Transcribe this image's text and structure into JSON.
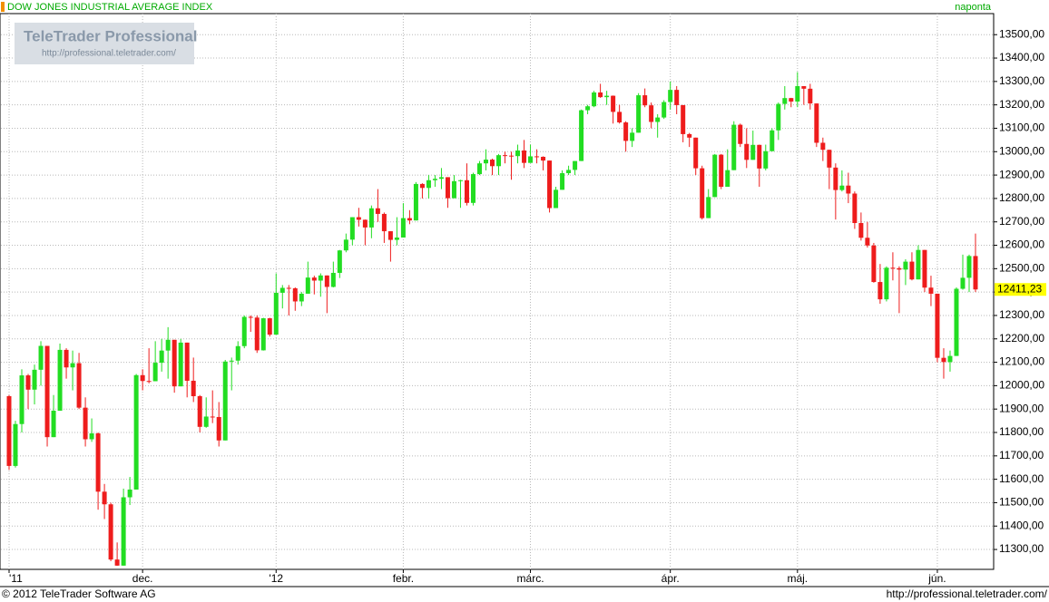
{
  "chart_data": {
    "type": "candlestick",
    "title": "DOW JONES INDUSTRIAL AVERAGE INDEX",
    "subtitle": "naponta",
    "categories": [
      "'11",
      null,
      null,
      null,
      null,
      null,
      null,
      null,
      null,
      null,
      null,
      null,
      null,
      null,
      null,
      null,
      null,
      null,
      null,
      null,
      null,
      "dec.",
      null,
      null,
      null,
      null,
      null,
      null,
      null,
      null,
      null,
      null,
      null,
      null,
      null,
      null,
      null,
      null,
      null,
      null,
      null,
      null,
      "'12",
      null,
      null,
      null,
      null,
      null,
      null,
      null,
      null,
      null,
      null,
      null,
      null,
      null,
      null,
      null,
      null,
      null,
      null,
      null,
      "febr.",
      null,
      null,
      null,
      null,
      null,
      null,
      null,
      null,
      null,
      null,
      null,
      null,
      null,
      null,
      null,
      null,
      null,
      null,
      null,
      "márc.",
      null,
      null,
      null,
      null,
      null,
      null,
      null,
      null,
      null,
      null,
      null,
      null,
      null,
      null,
      null,
      null,
      null,
      null,
      null,
      null,
      null,
      "ápr.",
      null,
      null,
      null,
      null,
      null,
      null,
      null,
      null,
      null,
      null,
      null,
      null,
      null,
      null,
      null,
      null,
      null,
      null,
      null,
      "máj.",
      null,
      null,
      null,
      null,
      null,
      null,
      null,
      null,
      null,
      null,
      null,
      null,
      null,
      null,
      null,
      null,
      null,
      null,
      null,
      null,
      null,
      "jún.",
      null,
      null,
      null,
      null,
      null,
      null
    ],
    "open": [
      11955,
      11657,
      11836,
      12044,
      11983,
      12068,
      12170,
      11780,
      11893,
      12153,
      12078,
      12096,
      11906,
      11771,
      11796,
      11547,
      11493,
      11257,
      11231,
      11523,
      11556,
      12045,
      12020,
      12019,
      12098,
      12150,
      12196,
      11997,
      12184,
      12021,
      11955,
      11824,
      11868,
      11866,
      11766,
      12103,
      12107,
      12169,
      12294,
      12291,
      12151,
      12288,
      12218,
      12397,
      12418,
      12416,
      12360,
      12393,
      12462,
      12449,
      12471,
      12422,
      12482,
      12578,
      12624,
      12720,
      12709,
      12676,
      12758,
      12734,
      12660,
      12623,
      12633,
      12716,
      12706,
      12862,
      12845,
      12878,
      12884,
      12891,
      12801,
      12874,
      12878,
      12781,
      12904,
      12950,
      12966,
      12938,
      12985,
      12983,
      12981,
      13005,
      12952,
      12980,
      12978,
      12962,
      12759,
      12837,
      12908,
      12922,
      12960,
      13177,
      13194,
      13253,
      13233,
      13239,
      13170,
      13125,
      13046,
      13081,
      13241,
      13198,
      13127,
      13146,
      13212,
      13264,
      13199,
      13075,
      13060,
      12929,
      12716,
      12806,
      12987,
      12850,
      12921,
      13115,
      13033,
      12965,
      13029,
      12928,
      13002,
      13091,
      13204,
      13229,
      13214,
      13280,
      13269,
      13206,
      13038,
      13008,
      12932,
      12836,
      12855,
      12821,
      12695,
      12632,
      12599,
      12443,
      12369,
      12504,
      12502,
      12496,
      12530,
      12454,
      12580,
      12419,
      12393,
      12119,
      12101,
      12127,
      12414,
      12461,
      12554
    ],
    "high": [
      11960,
      11850,
      12070,
      12050,
      12090,
      12190,
      12170,
      11960,
      12180,
      12160,
      12150,
      12140,
      11950,
      11860,
      11800,
      11580,
      11500,
      11330,
      11560,
      11610,
      12050,
      12070,
      12160,
      12190,
      12200,
      12250,
      12196,
      12200,
      12184,
      12120,
      11960,
      11950,
      11980,
      11930,
      12110,
      12120,
      12190,
      12300,
      12300,
      12300,
      12290,
      12290,
      12480,
      12430,
      12430,
      12420,
      12400,
      12530,
      12470,
      12480,
      12471,
      12530,
      12580,
      12650,
      12720,
      12760,
      12710,
      12770,
      12840,
      12740,
      12660,
      12720,
      12780,
      12750,
      12870,
      12865,
      12900,
      12900,
      12930,
      12891,
      12900,
      12880,
      12950,
      12910,
      12960,
      13010,
      12970,
      12990,
      13000,
      13000,
      13030,
      13050,
      13030,
      13010,
      12980,
      12962,
      12850,
      12920,
      12940,
      12960,
      13180,
      13200,
      13260,
      13290,
      13260,
      13240,
      13200,
      13130,
      13100,
      13250,
      13270,
      13210,
      13160,
      13220,
      13300,
      13280,
      13199,
      13080,
      13060,
      12940,
      12840,
      12990,
      12990,
      13010,
      13130,
      13120,
      13100,
      13090,
      13030,
      13030,
      13100,
      13210,
      13280,
      13230,
      13340,
      13280,
      13290,
      13206,
      13060,
      13008,
      12950,
      12920,
      12910,
      12830,
      12740,
      12700,
      12610,
      12520,
      12510,
      12570,
      12510,
      12540,
      12570,
      12600,
      12580,
      12470,
      12393,
      12160,
      12150,
      12420,
      12560,
      12560,
      12650
    ],
    "low": [
      11640,
      11650,
      11800,
      11900,
      11920,
      12000,
      11740,
      11780,
      11893,
      12030,
      11980,
      11900,
      11740,
      11760,
      11470,
      11430,
      11250,
      11230,
      11231,
      11490,
      11556,
      11980,
      12010,
      12019,
      12060,
      12030,
      11970,
      11997,
      11950,
      11930,
      11800,
      11820,
      11840,
      11740,
      11766,
      11980,
      12090,
      12160,
      12230,
      12140,
      12150,
      12210,
      12218,
      12330,
      12300,
      12320,
      12340,
      12393,
      12390,
      12380,
      12310,
      12420,
      12460,
      12570,
      12600,
      12680,
      12600,
      12630,
      12700,
      12610,
      12530,
      12600,
      12633,
      12690,
      12706,
      12800,
      12800,
      12850,
      12840,
      12760,
      12801,
      12760,
      12770,
      12770,
      12900,
      12920,
      12900,
      12900,
      12950,
      12880,
      12950,
      12930,
      12952,
      12950,
      12920,
      12740,
      12759,
      12837,
      12900,
      12900,
      12960,
      13160,
      13190,
      13230,
      13200,
      13120,
      13120,
      13000,
      13020,
      13081,
      13190,
      13100,
      13060,
      13140,
      13180,
      13160,
      13040,
      13020,
      12900,
      12710,
      12716,
      12806,
      12840,
      12850,
      12921,
      13020,
      12930,
      12965,
      12850,
      12920,
      13002,
      13050,
      13180,
      13190,
      13190,
      13200,
      13180,
      13020,
      12960,
      12840,
      12710,
      12830,
      12780,
      12670,
      12620,
      12590,
      12440,
      12350,
      12360,
      12450,
      12310,
      12430,
      12450,
      12454,
      12400,
      12340,
      12100,
      12030,
      12060,
      12127,
      12410,
      12400,
      12400
    ],
    "close": [
      11657,
      11836,
      12044,
      11983,
      12068,
      12170,
      11780,
      11893,
      12153,
      12078,
      12096,
      11906,
      11771,
      11796,
      11547,
      11493,
      11257,
      11231,
      11523,
      11556,
      12045,
      12020,
      12019,
      12098,
      12150,
      12196,
      11997,
      12184,
      12021,
      11955,
      11824,
      11868,
      11866,
      11766,
      12103,
      12107,
      12169,
      12294,
      12291,
      12151,
      12288,
      12218,
      12397,
      12418,
      12416,
      12360,
      12393,
      12462,
      12449,
      12471,
      12422,
      12482,
      12578,
      12624,
      12720,
      12709,
      12676,
      12758,
      12734,
      12660,
      12623,
      12633,
      12716,
      12706,
      12862,
      12845,
      12878,
      12884,
      12891,
      12801,
      12874,
      12878,
      12781,
      12904,
      12950,
      12966,
      12938,
      12985,
      12983,
      12981,
      13005,
      12952,
      12980,
      12978,
      12962,
      12759,
      12837,
      12908,
      12922,
      12960,
      13177,
      13194,
      13253,
      13233,
      13239,
      13170,
      13125,
      13046,
      13081,
      13241,
      13198,
      13127,
      13146,
      13212,
      13264,
      13199,
      13075,
      13060,
      12929,
      12716,
      12806,
      12987,
      12850,
      12921,
      13115,
      13033,
      12965,
      13029,
      12928,
      13002,
      13091,
      13204,
      13229,
      13214,
      13280,
      13269,
      13206,
      13038,
      13008,
      12932,
      12836,
      12855,
      12821,
      12695,
      12632,
      12599,
      12443,
      12369,
      12504,
      12502,
      12496,
      12530,
      12454,
      12580,
      12419,
      12393,
      12119,
      12101,
      12127,
      12414,
      12461,
      12554,
      12411.23
    ],
    "last_value_label": "12411,23",
    "up_color": "#22dd22",
    "down_color": "#ee1c1c",
    "grid": true,
    "ylim": [
      11215,
      13590
    ],
    "yticks": [
      {
        "value": 11300,
        "label": "11300,00"
      },
      {
        "value": 11400,
        "label": "11400,00"
      },
      {
        "value": 11500,
        "label": "11500,00"
      },
      {
        "value": 11600,
        "label": "11600,00"
      },
      {
        "value": 11700,
        "label": "11700,00"
      },
      {
        "value": 11800,
        "label": "11800,00"
      },
      {
        "value": 11900,
        "label": "11900,00"
      },
      {
        "value": 12000,
        "label": "12000,00"
      },
      {
        "value": 12100,
        "label": "12100,00"
      },
      {
        "value": 12200,
        "label": "12200,00"
      },
      {
        "value": 12300,
        "label": "12300,00"
      },
      {
        "value": 12400,
        "label": "12400,00"
      },
      {
        "value": 12500,
        "label": "12500,00"
      },
      {
        "value": 12600,
        "label": "12600,00"
      },
      {
        "value": 12700,
        "label": "12700,00"
      },
      {
        "value": 12800,
        "label": "12800,00"
      },
      {
        "value": 12900,
        "label": "12900,00"
      },
      {
        "value": 13000,
        "label": "13000,00"
      },
      {
        "value": 13100,
        "label": "13100,00"
      },
      {
        "value": 13200,
        "label": "13200,00"
      },
      {
        "value": 13300,
        "label": "13300,00"
      },
      {
        "value": 13400,
        "label": "13400,00"
      },
      {
        "value": 13500,
        "label": "13500,00"
      }
    ]
  },
  "watermark": {
    "title": "TeleTrader Professional",
    "url": "http://professional.teletrader.com/"
  },
  "footer": {
    "copyright": "© 2012 TeleTrader Software AG",
    "url": "http://professional.teletrader.com/"
  }
}
